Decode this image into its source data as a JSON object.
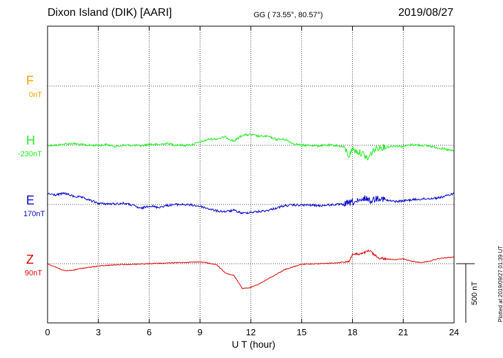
{
  "header": {
    "station": "Dixon Island (DIK)  [AARI]",
    "coords": "GG ( 73.55°,  80.57°)",
    "date": "2019/08/27"
  },
  "chart_data": {
    "type": "line",
    "xlabel": "U T (hour)",
    "xlim": [
      0,
      24
    ],
    "xticks": [
      0,
      3,
      6,
      9,
      12,
      15,
      18,
      21,
      24
    ],
    "tick_labels": [
      "0",
      "3",
      "6",
      "9",
      "12",
      "15",
      "18",
      "21",
      "24"
    ],
    "grid": true,
    "scale_bar": {
      "value_nT": 500,
      "label": "500 nT"
    },
    "series": [
      {
        "letter": "F",
        "offset": "0nT",
        "color": "#f5a300",
        "baseline_nT": 0,
        "values_nT": []
      },
      {
        "letter": "H",
        "offset": "-230nT",
        "color": "#22ee22",
        "baseline_nT": -230,
        "x": [
          0,
          0.5,
          1,
          1.5,
          2,
          2.5,
          3,
          3.5,
          4,
          4.5,
          5,
          5.5,
          6,
          6.5,
          7,
          7.5,
          8,
          8.5,
          9,
          9.5,
          10,
          10.5,
          11,
          11.5,
          12,
          12.5,
          13,
          13.5,
          14,
          14.5,
          15,
          15.5,
          16,
          16.5,
          17,
          17.5,
          17.8,
          18,
          18.3,
          18.6,
          18.9,
          19.2,
          19.5,
          20,
          20.5,
          21,
          21.5,
          22,
          22.5,
          23,
          23.5,
          24
        ],
        "values_nT": [
          -230,
          -230,
          -220,
          -215,
          -225,
          -230,
          -230,
          -225,
          -240,
          -230,
          -230,
          -235,
          -220,
          -225,
          -215,
          -225,
          -230,
          -225,
          -205,
          -180,
          -175,
          -160,
          -195,
          -145,
          -140,
          -155,
          -155,
          -180,
          -180,
          -215,
          -230,
          -230,
          -235,
          -230,
          -230,
          -245,
          -320,
          -260,
          -285,
          -300,
          -345,
          -280,
          -250,
          -245,
          -235,
          -240,
          -225,
          -230,
          -235,
          -250,
          -265,
          -280
        ]
      },
      {
        "letter": "E",
        "offset": "170nT",
        "color": "#0000cc",
        "baseline_nT": 170,
        "x": [
          0,
          0.5,
          1,
          1.5,
          2,
          2.5,
          3,
          3.5,
          4,
          4.5,
          5,
          5.5,
          6,
          6.5,
          7,
          7.5,
          8,
          8.5,
          9,
          9.5,
          10,
          10.5,
          11,
          11.5,
          12,
          12.5,
          13,
          13.5,
          14,
          14.5,
          15,
          15.5,
          16,
          16.5,
          17,
          17.5,
          18,
          18.5,
          18.8,
          19,
          19.3,
          19.6,
          20,
          20.5,
          21,
          21.5,
          22,
          22.5,
          23,
          23.5,
          24
        ],
        "values_nT": [
          260,
          250,
          265,
          240,
          230,
          205,
          180,
          175,
          175,
          180,
          165,
          135,
          160,
          145,
          160,
          170,
          170,
          165,
          155,
          135,
          115,
          110,
          120,
          95,
          105,
          110,
          120,
          140,
          160,
          165,
          165,
          165,
          160,
          165,
          170,
          170,
          190,
          195,
          230,
          200,
          215,
          230,
          205,
          195,
          200,
          210,
          215,
          220,
          225,
          240,
          265
        ]
      },
      {
        "letter": "Z",
        "offset": "90nT",
        "color": "#dd0000",
        "baseline_nT": 90,
        "x": [
          0,
          0.5,
          1,
          1.5,
          2,
          3,
          4,
          5,
          6,
          7,
          8,
          9,
          9.5,
          10,
          10.5,
          11,
          11.5,
          12,
          12.5,
          13,
          13.5,
          14,
          15,
          16,
          17,
          17.5,
          17.8,
          18,
          18.5,
          19,
          19.5,
          20,
          20.5,
          21,
          21.5,
          22,
          22.5,
          23,
          23.5,
          24
        ],
        "values_nT": [
          90,
          60,
          30,
          35,
          50,
          70,
          80,
          85,
          90,
          95,
          100,
          105,
          95,
          80,
          10,
          -10,
          -120,
          -110,
          -80,
          -40,
          0,
          40,
          85,
          90,
          95,
          105,
          110,
          170,
          170,
          200,
          140,
          130,
          125,
          130,
          110,
          100,
          110,
          130,
          140,
          145
        ]
      }
    ]
  },
  "footer": {
    "plotted_note": "Plotted at 2019/09/27 01:39 UT"
  }
}
